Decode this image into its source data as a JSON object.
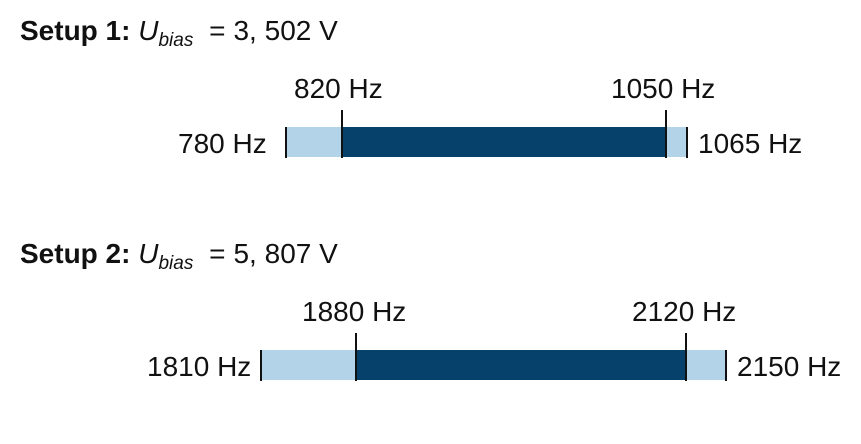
{
  "setups": [
    {
      "label": "Setup 1:",
      "var": "U",
      "sub": "bias",
      "eq": "=",
      "value": "3, 502 V",
      "outer": {
        "low": "780 Hz",
        "high": "1065 Hz"
      },
      "inner": {
        "low": "820 Hz",
        "high": "1050 Hz"
      }
    },
    {
      "label": "Setup 2:",
      "var": "U",
      "sub": "bias",
      "eq": "=",
      "value": "5, 807 V",
      "outer": {
        "low": "1810 Hz",
        "high": "2150 Hz"
      },
      "inner": {
        "low": "1880 Hz",
        "high": "2120 Hz"
      }
    }
  ],
  "colors": {
    "outer_band": "#b3d4e8",
    "inner_band": "#05416a"
  }
}
